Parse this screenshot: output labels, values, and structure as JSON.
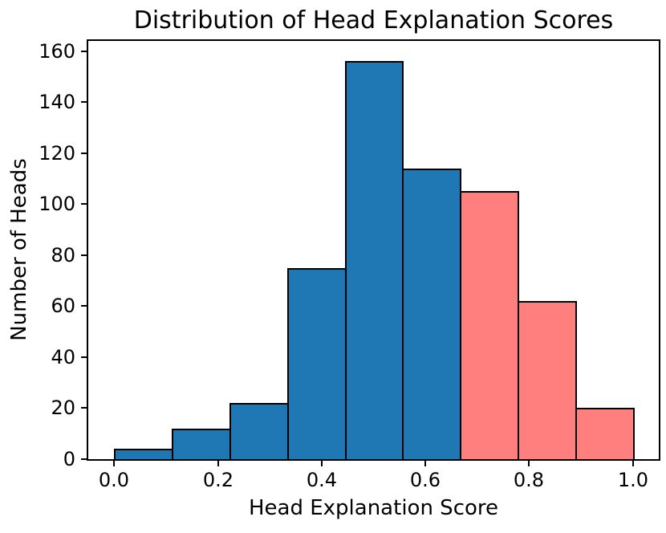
{
  "chart_data": {
    "type": "bar",
    "subtype": "histogram",
    "title": "Distribution of Head Explanation Scores",
    "xlabel": "Head Explanation Score",
    "ylabel": "Number of Heads",
    "bin_edges": [
      0.0,
      0.1111,
      0.2222,
      0.3333,
      0.4444,
      0.5556,
      0.6667,
      0.7778,
      0.8889,
      1.0
    ],
    "values": [
      4,
      12,
      22,
      75,
      156,
      114,
      105,
      62,
      20
    ],
    "bar_colors": [
      "#1f77b4",
      "#1f77b4",
      "#1f77b4",
      "#1f77b4",
      "#1f77b4",
      "#1f77b4",
      "#ff7f7f",
      "#ff7f7f",
      "#ff7f7f"
    ],
    "edge_color": "#000000",
    "colors": {
      "low_score_bars": "#1f77b4",
      "high_score_bars": "#ff7f7f"
    },
    "xticks": [
      0.0,
      0.2,
      0.4,
      0.6,
      0.8,
      1.0
    ],
    "xtick_labels": [
      "0.0",
      "0.2",
      "0.4",
      "0.6",
      "0.8",
      "1.0"
    ],
    "yticks": [
      0,
      20,
      40,
      60,
      80,
      100,
      120,
      140,
      160
    ],
    "ytick_labels": [
      "0",
      "20",
      "40",
      "60",
      "80",
      "100",
      "120",
      "140",
      "160"
    ],
    "xlim": [
      -0.05,
      1.05
    ],
    "ylim": [
      0,
      164
    ],
    "grid": false,
    "legend": null
  }
}
